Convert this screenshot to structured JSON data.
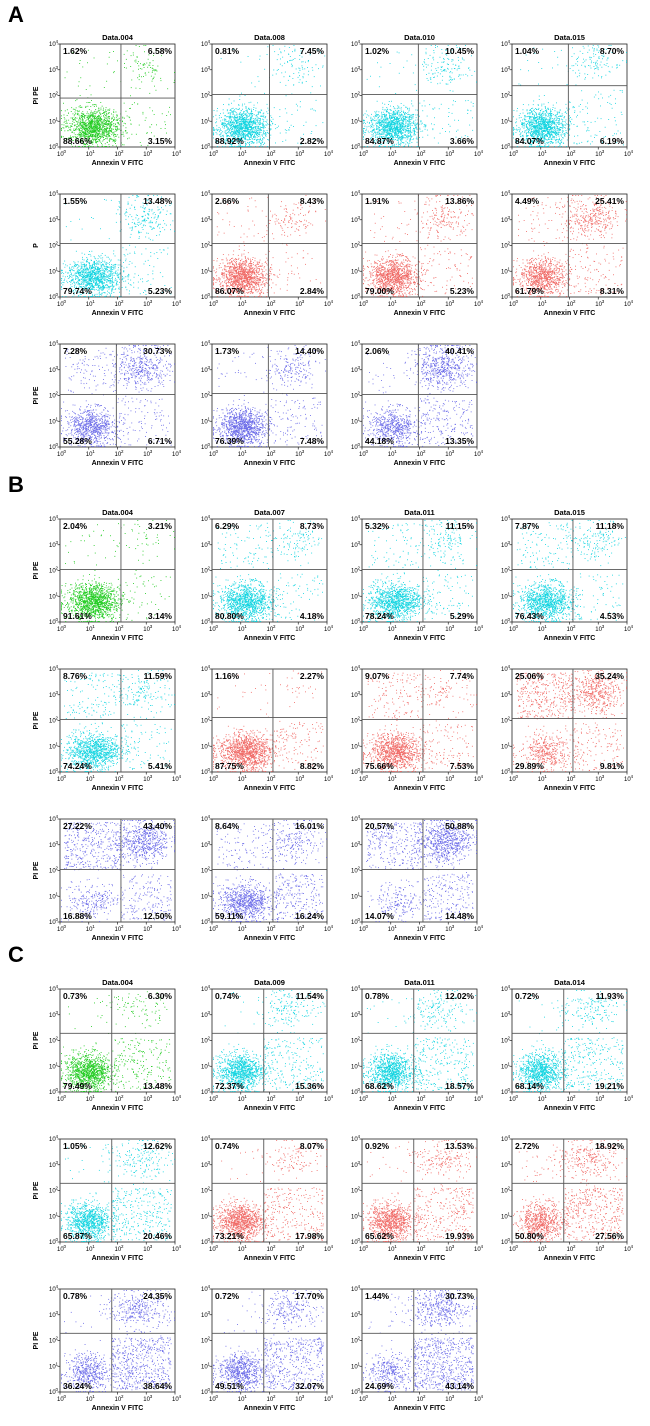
{
  "colors": {
    "green": "#22cc22",
    "cyan": "#11d4e0",
    "red": "#f06a66",
    "blue": "#6a6ae8",
    "gate": "#555555",
    "axis": "#222222"
  },
  "chart_data": {
    "type": "scatter",
    "description_axes": {
      "x_range": [
        1,
        10000
      ],
      "y_range": [
        1,
        10000
      ],
      "scale": "log",
      "x_tick_labels": [
        "10",
        "10",
        "10",
        "10",
        "10"
      ],
      "x_tick_exponents": [
        "0",
        "1",
        "2",
        "3",
        "4"
      ],
      "y_tick_labels": [
        "10",
        "10",
        "10",
        "10",
        "10"
      ],
      "y_tick_exponents": [
        "0",
        "1",
        "2",
        "3",
        "4"
      ]
    },
    "sections": [
      {
        "letter": "A",
        "plots": [
          {
            "title": "Data.004",
            "ylabel": "PI PE",
            "xlabel": "Annexin V FITC",
            "color": "green",
            "ul": "1.62%",
            "ur": "6.58%",
            "ll": "88.66%",
            "lr": "3.15%",
            "gate": [
              96,
              99
            ]
          },
          {
            "title": "Data.008",
            "ylabel": "",
            "xlabel": "Annexin V FITC",
            "color": "cyan",
            "ul": "0.81%",
            "ur": "7.45%",
            "ll": "88.92%",
            "lr": "2.82%",
            "gate": [
              90,
              92
            ]
          },
          {
            "title": "Data.010",
            "ylabel": "",
            "xlabel": "Annexin V FITC",
            "color": "cyan",
            "ul": "1.02%",
            "ur": "10.45%",
            "ll": "84.87%",
            "lr": "3.66%",
            "gate": [
              88,
              92
            ]
          },
          {
            "title": "Data.015",
            "ylabel": "",
            "xlabel": "Annexin V FITC",
            "color": "cyan",
            "ul": "1.04%",
            "ur": "8.70%",
            "ll": "84.07%",
            "lr": "6.19%",
            "gate": [
              88,
              75
            ]
          },
          {
            "title": "",
            "ylabel": "P",
            "xlabel": "Annexin V FITC",
            "color": "cyan",
            "ul": "1.55%",
            "ur": "13.48%",
            "ll": "79.74%",
            "lr": "5.23%",
            "gate": [
              96,
              90
            ]
          },
          {
            "title": "",
            "ylabel": "",
            "xlabel": "Annexin V FITC",
            "color": "red",
            "ul": "2.66%",
            "ur": "8.43%",
            "ll": "86.07%",
            "lr": "2.84%",
            "gate": [
              88,
              90
            ]
          },
          {
            "title": "",
            "ylabel": "",
            "xlabel": "Annexin V FITC",
            "color": "red",
            "ul": "1.91%",
            "ur": "13.86%",
            "ll": "79.00%",
            "lr": "5.23%",
            "gate": [
              88,
              90
            ]
          },
          {
            "title": "",
            "ylabel": "",
            "xlabel": "Annexin V FITC",
            "color": "red",
            "ul": "4.49%",
            "ur": "25.41%",
            "ll": "61.79%",
            "lr": "8.31%",
            "gate": [
              88,
              90
            ]
          },
          {
            "title": "",
            "ylabel": "PI PE",
            "xlabel": "Annexin V FITC",
            "color": "blue",
            "ul": "7.28%",
            "ur": "30.73%",
            "ll": "55.28%",
            "lr": "6.71%",
            "gate": [
              88,
              92
            ]
          },
          {
            "title": "",
            "ylabel": "",
            "xlabel": "Annexin V FITC",
            "color": "blue",
            "ul": "1.73%",
            "ur": "14.40%",
            "ll": "76.39%",
            "lr": "7.48%",
            "gate": [
              88,
              90
            ]
          },
          {
            "title": "",
            "ylabel": "",
            "xlabel": "Annexin V FITC",
            "color": "blue",
            "ul": "2.06%",
            "ur": "40.41%",
            "ll": "44.18%",
            "lr": "13.35%",
            "gate": [
              88,
              92
            ]
          }
        ]
      },
      {
        "letter": "B",
        "plots": [
          {
            "title": "Data.004",
            "ylabel": "PI PE",
            "xlabel": "Annexin V FITC",
            "color": "green",
            "ul": "2.04%",
            "ur": "3.21%",
            "ll": "91.61%",
            "lr": "3.14%",
            "gate": [
              96,
              92
            ]
          },
          {
            "title": "Data.007",
            "ylabel": "",
            "xlabel": "Annexin V FITC",
            "color": "cyan",
            "ul": "6.29%",
            "ur": "8.73%",
            "ll": "80.80%",
            "lr": "4.18%",
            "gate": [
              96,
              92
            ]
          },
          {
            "title": "Data.011",
            "ylabel": "",
            "xlabel": "Annexin V FITC",
            "color": "cyan",
            "ul": "5.32%",
            "ur": "11.15%",
            "ll": "78.24%",
            "lr": "5.29%",
            "gate": [
              96,
              92
            ]
          },
          {
            "title": "Data.015",
            "ylabel": "",
            "xlabel": "Annexin V FITC",
            "color": "cyan",
            "ul": "7.87%",
            "ur": "11.18%",
            "ll": "76.43%",
            "lr": "4.53%",
            "gate": [
              96,
              92
            ]
          },
          {
            "title": "",
            "ylabel": "PI PE",
            "xlabel": "Annexin V FITC",
            "color": "cyan",
            "ul": "8.76%",
            "ur": "11.59%",
            "ll": "74.24%",
            "lr": "5.41%",
            "gate": [
              96,
              92
            ]
          },
          {
            "title": "",
            "ylabel": "",
            "xlabel": "Annexin V FITC",
            "color": "red",
            "ul": "1.16%",
            "ur": "2.27%",
            "ll": "87.75%",
            "lr": "8.82%",
            "gate": [
              96,
              88
            ]
          },
          {
            "title": "",
            "ylabel": "",
            "xlabel": "Annexin V FITC",
            "color": "red",
            "ul": "9.07%",
            "ur": "7.74%",
            "ll": "75.66%",
            "lr": "7.53%",
            "gate": [
              96,
              92
            ]
          },
          {
            "title": "",
            "ylabel": "",
            "xlabel": "Annexin V FITC",
            "color": "red",
            "ul": "25.06%",
            "ur": "35.24%",
            "ll": "29.89%",
            "lr": "9.81%",
            "gate": [
              96,
              90
            ]
          },
          {
            "title": "",
            "ylabel": "PI PE",
            "xlabel": "Annexin V FITC",
            "color": "blue",
            "ul": "27.22%",
            "ur": "43.40%",
            "ll": "16.88%",
            "lr": "12.50%",
            "gate": [
              96,
              92
            ]
          },
          {
            "title": "",
            "ylabel": "",
            "xlabel": "Annexin V FITC",
            "color": "blue",
            "ul": "8.64%",
            "ur": "16.01%",
            "ll": "59.11%",
            "lr": "16.24%",
            "gate": [
              96,
              92
            ]
          },
          {
            "title": "",
            "ylabel": "",
            "xlabel": "Annexin V FITC",
            "color": "blue",
            "ul": "20.57%",
            "ur": "50.88%",
            "ll": "14.07%",
            "lr": "14.48%",
            "gate": [
              96,
              92
            ]
          }
        ]
      },
      {
        "letter": "C",
        "plots": [
          {
            "title": "Data.004",
            "ylabel": "PI PE",
            "xlabel": "Annexin V FITC",
            "color": "green",
            "ul": "0.73%",
            "ur": "6.30%",
            "ll": "79.49%",
            "lr": "13.48%",
            "gate": [
              80,
              80
            ]
          },
          {
            "title": "Data.009",
            "ylabel": "",
            "xlabel": "Annexin V FITC",
            "color": "cyan",
            "ul": "0.74%",
            "ur": "11.54%",
            "ll": "72.37%",
            "lr": "15.36%",
            "gate": [
              80,
              80
            ]
          },
          {
            "title": "Data.011",
            "ylabel": "",
            "xlabel": "Annexin V FITC",
            "color": "cyan",
            "ul": "0.78%",
            "ur": "12.02%",
            "ll": "68.62%",
            "lr": "18.57%",
            "gate": [
              80,
              80
            ]
          },
          {
            "title": "Data.014",
            "ylabel": "",
            "xlabel": "Annexin V FITC",
            "color": "cyan",
            "ul": "0.72%",
            "ur": "11.93%",
            "ll": "68.14%",
            "lr": "19.21%",
            "gate": [
              80,
              80
            ]
          },
          {
            "title": "",
            "ylabel": "PI PE",
            "xlabel": "Annexin V FITC",
            "color": "cyan",
            "ul": "1.05%",
            "ur": "12.62%",
            "ll": "65.87%",
            "lr": "20.46%",
            "gate": [
              80,
              80
            ]
          },
          {
            "title": "",
            "ylabel": "",
            "xlabel": "Annexin V FITC",
            "color": "red",
            "ul": "0.74%",
            "ur": "8.07%",
            "ll": "73.21%",
            "lr": "17.98%",
            "gate": [
              80,
              80
            ]
          },
          {
            "title": "",
            "ylabel": "",
            "xlabel": "Annexin V FITC",
            "color": "red",
            "ul": "0.92%",
            "ur": "13.53%",
            "ll": "65.62%",
            "lr": "19.93%",
            "gate": [
              80,
              80
            ]
          },
          {
            "title": "",
            "ylabel": "",
            "xlabel": "Annexin V FITC",
            "color": "red",
            "ul": "2.72%",
            "ur": "18.92%",
            "ll": "50.80%",
            "lr": "27.56%",
            "gate": [
              80,
              80
            ]
          },
          {
            "title": "",
            "ylabel": "PI PE",
            "xlabel": "Annexin V FITC",
            "color": "blue",
            "ul": "0.78%",
            "ur": "24.35%",
            "ll": "36.24%",
            "lr": "38.64%",
            "gate": [
              80,
              80
            ]
          },
          {
            "title": "",
            "ylabel": "",
            "xlabel": "Annexin V FITC",
            "color": "blue",
            "ul": "0.72%",
            "ur": "17.70%",
            "ll": "49.51%",
            "lr": "32.07%",
            "gate": [
              80,
              80
            ]
          },
          {
            "title": "",
            "ylabel": "",
            "xlabel": "Annexin V FITC",
            "color": "blue",
            "ul": "1.44%",
            "ur": "30.73%",
            "ll": "24.69%",
            "lr": "43.14%",
            "gate": [
              80,
              80
            ]
          }
        ]
      }
    ]
  }
}
